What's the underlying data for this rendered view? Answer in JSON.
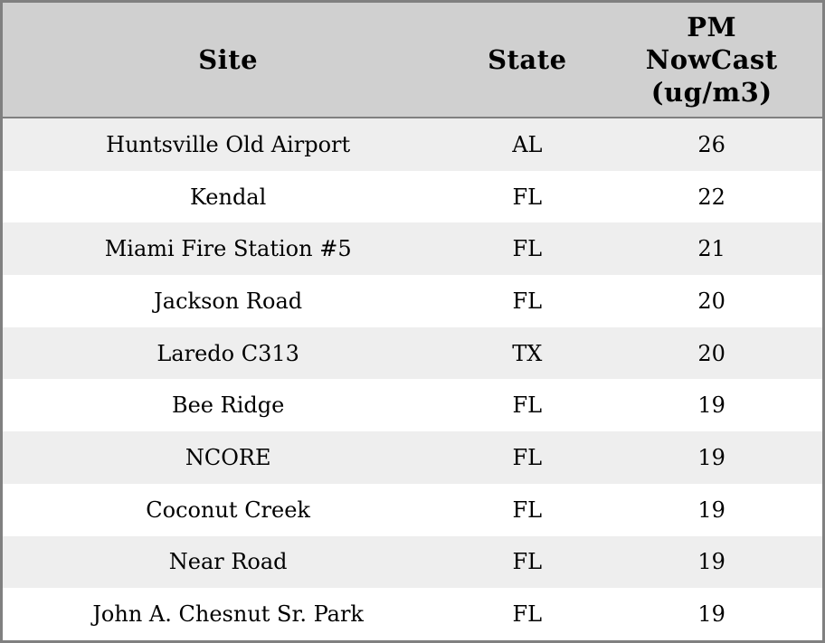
{
  "table": {
    "headers": {
      "site": "Site",
      "state": "State",
      "pm_lines": [
        "PM",
        "NowCast",
        "(ug/m3)"
      ]
    },
    "rows": [
      {
        "site": "Huntsville Old Airport",
        "state": "AL",
        "pm": "26"
      },
      {
        "site": "Kendal",
        "state": "FL",
        "pm": "22"
      },
      {
        "site": "Miami Fire Station #5",
        "state": "FL",
        "pm": "21"
      },
      {
        "site": "Jackson Road",
        "state": "FL",
        "pm": "20"
      },
      {
        "site": "Laredo C313",
        "state": "TX",
        "pm": "20"
      },
      {
        "site": "Bee Ridge",
        "state": "FL",
        "pm": "19"
      },
      {
        "site": "NCORE",
        "state": "FL",
        "pm": "19"
      },
      {
        "site": "Coconut Creek",
        "state": "FL",
        "pm": "19"
      },
      {
        "site": "Near Road",
        "state": "FL",
        "pm": "19"
      },
      {
        "site": "John A. Chesnut Sr. Park",
        "state": "FL",
        "pm": "19"
      }
    ]
  },
  "colors": {
    "border": "#808080",
    "header_bg": "#d0d0d0",
    "stripe_bg": "#eeeeee",
    "row_bg": "#ffffff",
    "text": "#000000"
  },
  "chart_data": {
    "type": "table",
    "columns": [
      "Site",
      "State",
      "PM NowCast (ug/m3)"
    ],
    "rows": [
      [
        "Huntsville Old Airport",
        "AL",
        26
      ],
      [
        "Kendal",
        "FL",
        22
      ],
      [
        "Miami Fire Station #5",
        "FL",
        21
      ],
      [
        "Jackson Road",
        "FL",
        20
      ],
      [
        "Laredo C313",
        "TX",
        20
      ],
      [
        "Bee Ridge",
        "FL",
        19
      ],
      [
        "NCORE",
        "FL",
        19
      ],
      [
        "Coconut Creek",
        "FL",
        19
      ],
      [
        "Near Road",
        "FL",
        19
      ],
      [
        "John A. Chesnut Sr. Park",
        "FL",
        19
      ]
    ],
    "title": "",
    "layout_hints": {
      "striped": true,
      "header_position": "top",
      "alignment": "center"
    }
  }
}
